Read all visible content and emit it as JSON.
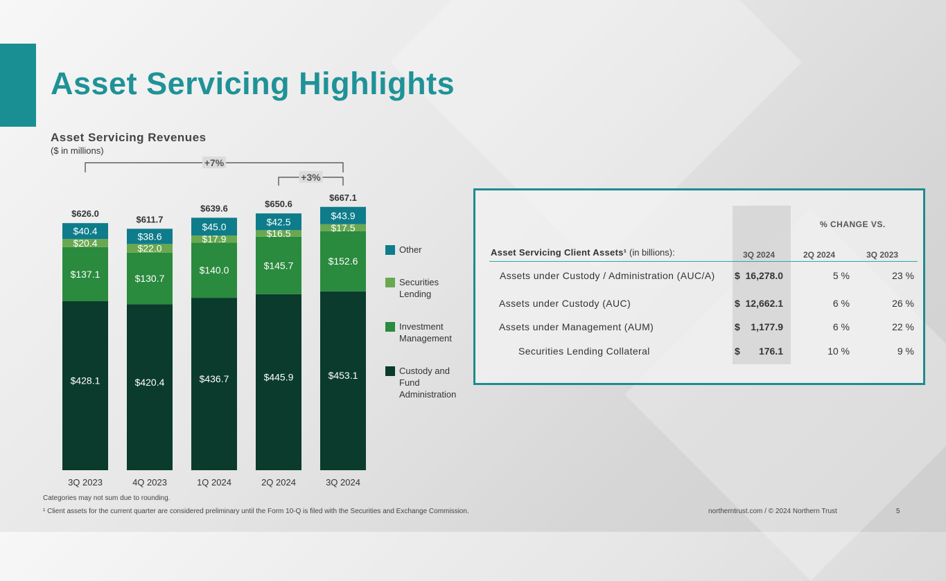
{
  "page": {
    "title": "Asset Servicing Highlights",
    "chart_title": "Asset Servicing Revenues",
    "chart_subtitle": "($ in millions)",
    "footnote_1": "Categories may not sum due to rounding.",
    "footnote_2": "¹ Client assets for the current quarter are considered preliminary until the Form 10-Q is filed with the Securities and Exchange Commission.",
    "footer_site": "northerntrust.com / © 2024 Northern Trust",
    "page_number": "5"
  },
  "colors": {
    "accent": "#1f9297",
    "other": "#0e7c8a",
    "sec_lending": "#6aa84f",
    "inv_mgmt": "#2a8a3e",
    "custody": "#0b3b2c",
    "table_border": "#1f8b8f"
  },
  "chart_data": {
    "type": "bar",
    "stacked": true,
    "categories": [
      "3Q 2023",
      "4Q 2023",
      "1Q 2024",
      "2Q 2024",
      "3Q 2024"
    ],
    "series": [
      {
        "name": "Custody and Fund Administration",
        "values": [
          428.1,
          420.4,
          436.7,
          445.9,
          453.1
        ]
      },
      {
        "name": "Investment Management",
        "values": [
          137.1,
          130.7,
          140.0,
          145.7,
          152.6
        ]
      },
      {
        "name": "Securities Lending",
        "values": [
          20.4,
          22.0,
          17.9,
          16.5,
          17.5
        ]
      },
      {
        "name": "Other",
        "values": [
          40.4,
          38.6,
          45.0,
          42.5,
          43.9
        ]
      }
    ],
    "data_labels": [
      [
        "$428.1",
        "$420.4",
        "$436.7",
        "$445.9",
        "$453.1"
      ],
      [
        "$137.1",
        "$130.7",
        "$140.0",
        "$145.7",
        "$152.6"
      ],
      [
        "$20.4",
        "$22.0",
        "$17.9",
        "$16.5",
        "$17.5"
      ],
      [
        "$40.4",
        "$38.6",
        "$45.0",
        "$42.5",
        "$43.9"
      ]
    ],
    "totals": [
      626.0,
      611.7,
      639.6,
      650.6,
      667.1
    ],
    "total_labels": [
      "$626.0",
      "$611.7",
      "$639.6",
      "$650.6",
      "$667.1"
    ],
    "annotations": [
      {
        "label": "+7%",
        "from": "3Q 2023",
        "to": "3Q 2024"
      },
      {
        "label": "+3%",
        "from": "2Q 2024",
        "to": "3Q 2024"
      }
    ],
    "legend": [
      "Other",
      "Securities Lending",
      "Investment Management",
      "Custody and Fund Administration"
    ],
    "legend_position": "right",
    "ylim": [
      0,
      700
    ]
  },
  "table": {
    "change_header": "% CHANGE VS.",
    "title_bold": "Asset Servicing Client Assets¹",
    "title_rest": " (in billions):",
    "columns": [
      "3Q 2024",
      "2Q 2024",
      "3Q 2023"
    ],
    "rows": [
      {
        "label": "Assets under Custody / Administration (AUC/A)",
        "dollar": "$",
        "value": "16,278.0",
        "chg_q": "5 %",
        "chg_y": "23 %"
      },
      {
        "label": "Assets under Custody (AUC)",
        "dollar": "$",
        "value": "12,662.1",
        "chg_q": "6 %",
        "chg_y": "26 %"
      },
      {
        "label": "Assets under Management (AUM)",
        "dollar": "$",
        "value": "1,177.9",
        "chg_q": "6 %",
        "chg_y": "22 %"
      },
      {
        "label": "Securities Lending Collateral",
        "dollar": "$",
        "value": "176.1",
        "chg_q": "10 %",
        "chg_y": "9 %"
      }
    ]
  }
}
